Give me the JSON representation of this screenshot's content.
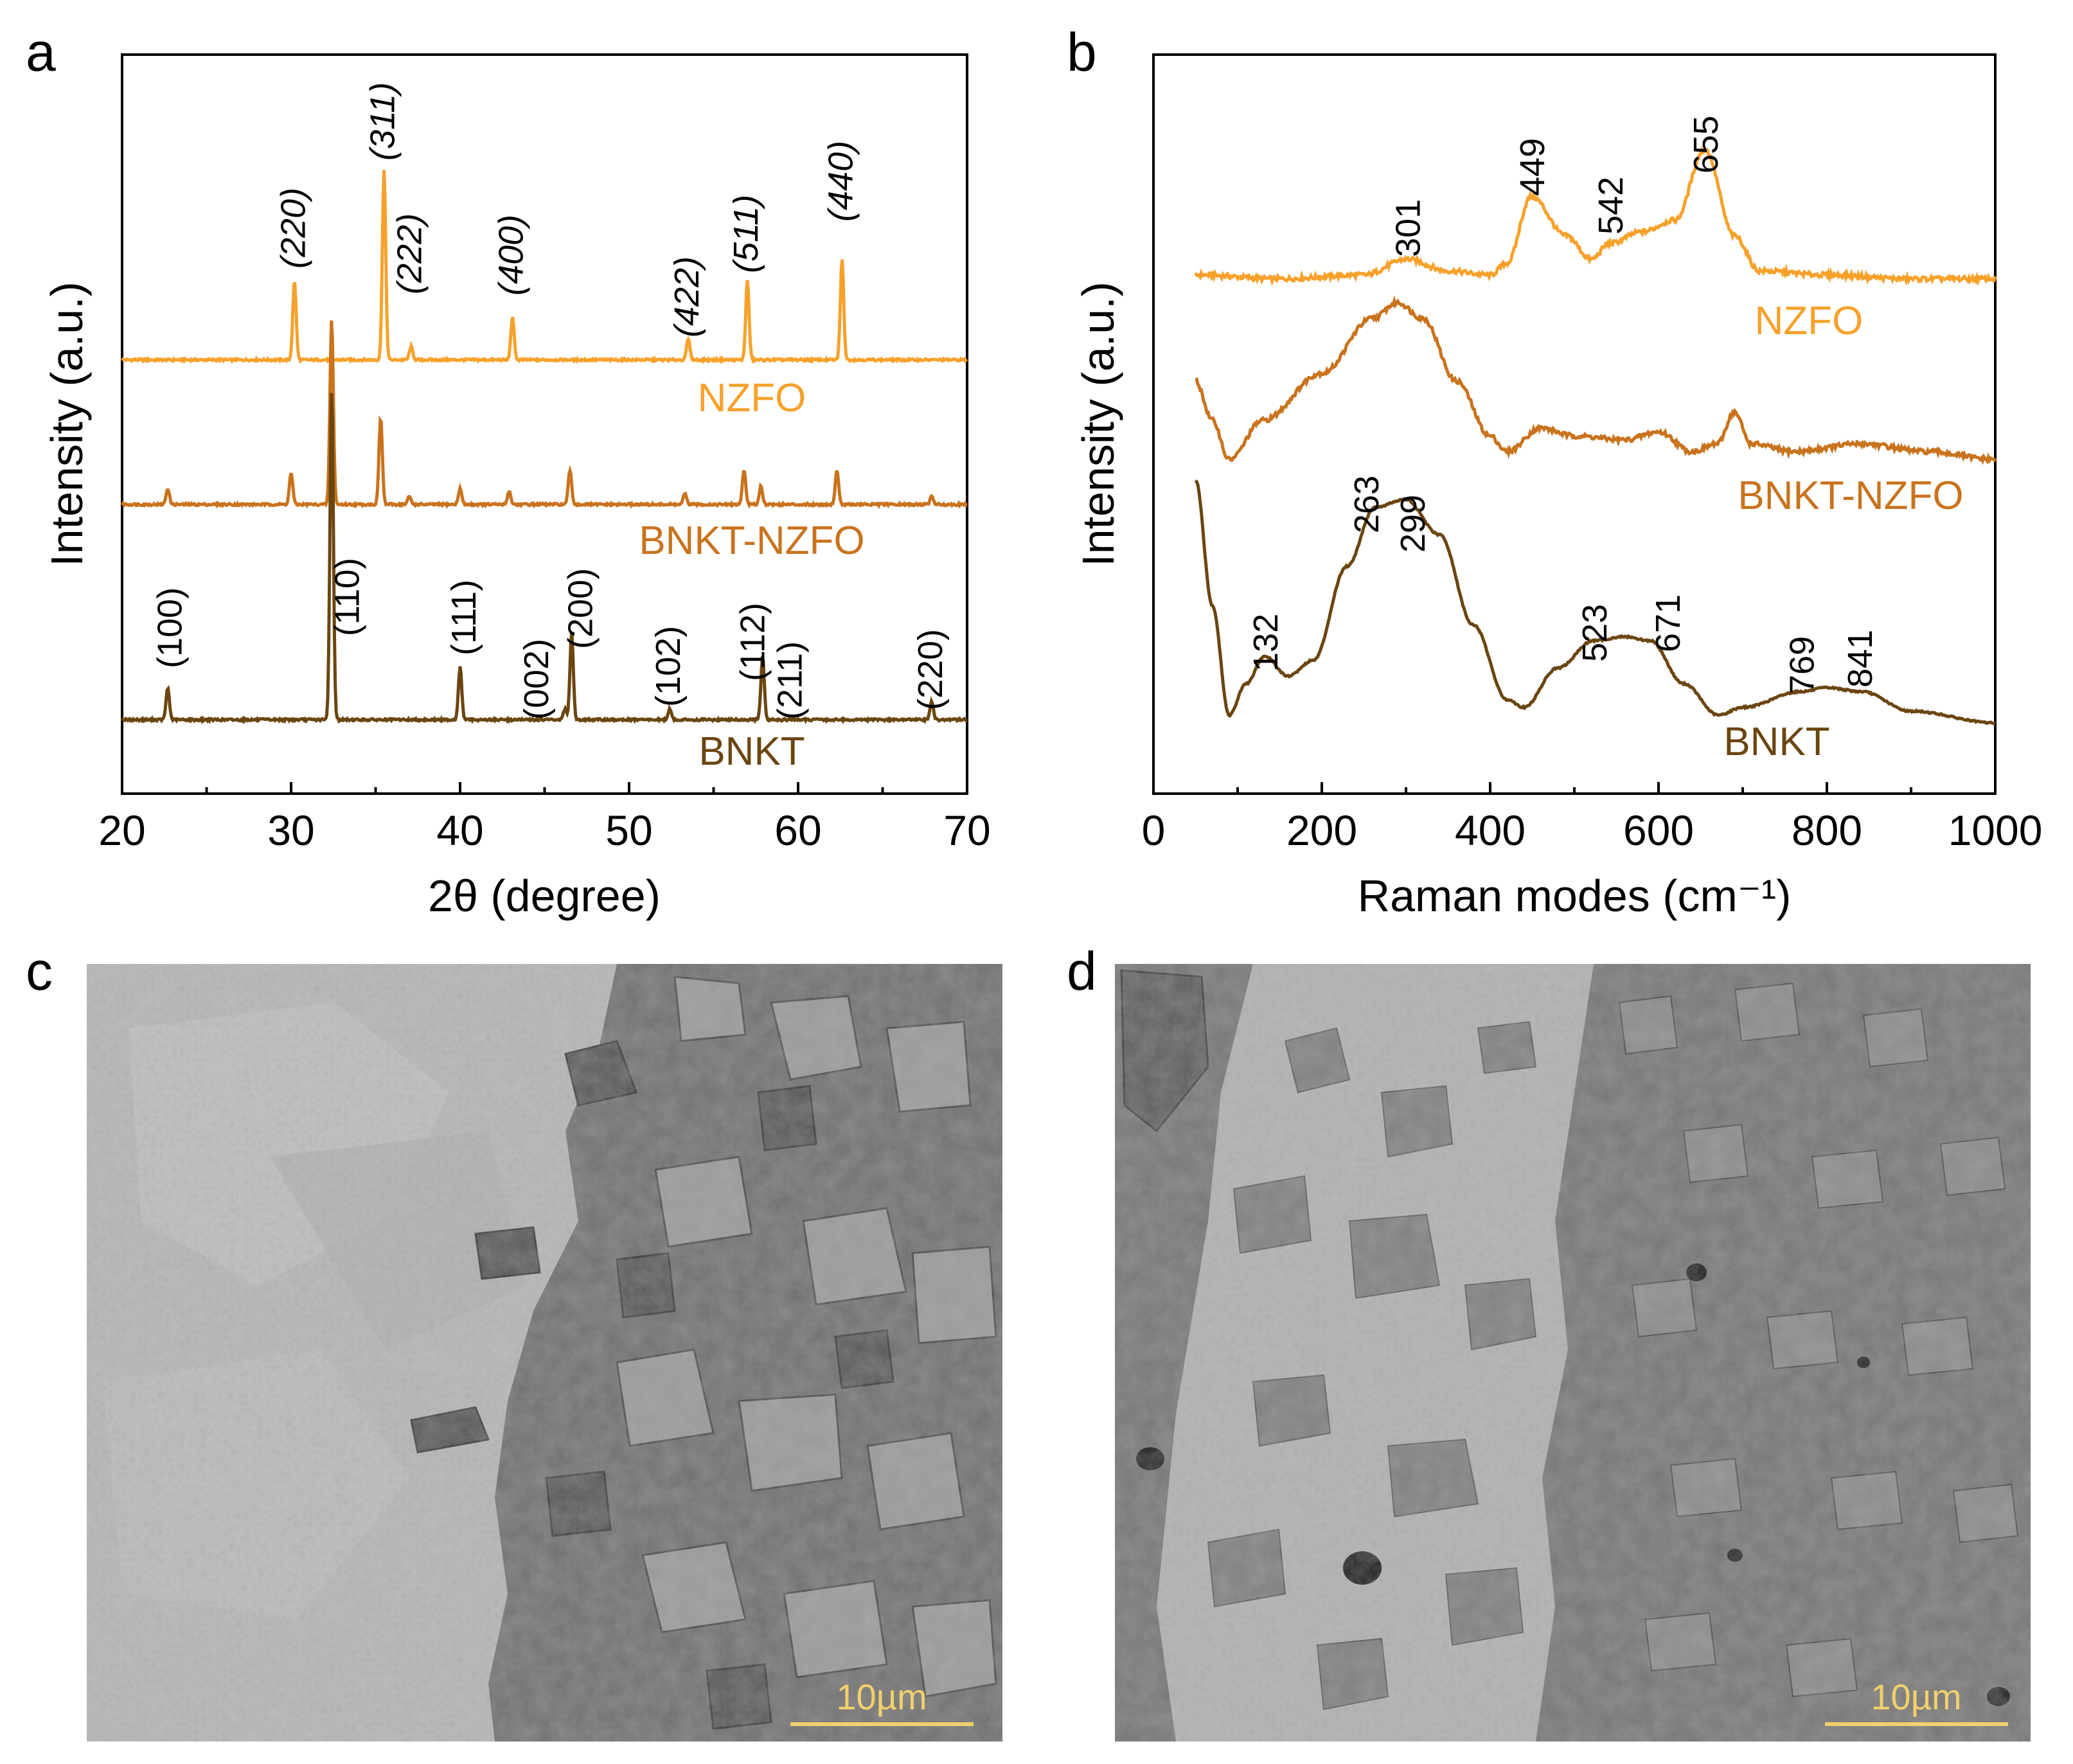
{
  "panels": {
    "a": "a",
    "b": "b",
    "c": "c",
    "d": "d"
  },
  "colors": {
    "NZFO": "#F7A12B",
    "BNKT-NZFO": "#C9731D",
    "BNKT": "#6B4510",
    "axis": "#000000",
    "scalebar": "#F2D06B"
  },
  "chart_data": [
    {
      "panel": "a",
      "type": "line",
      "title": "",
      "xlabel": "2θ (degree)",
      "ylabel": "Intensity (a.u.)",
      "xlim": [
        20,
        70
      ],
      "xticks": [
        20,
        30,
        40,
        50,
        60,
        70
      ],
      "grid": false,
      "series": [
        {
          "name": "NZFO",
          "peaks": [
            {
              "x": 30.2,
              "h": 0.3,
              "label": "(220)",
              "italic": true
            },
            {
              "x": 35.5,
              "h": 0.72,
              "label": "(311)",
              "italic": true
            },
            {
              "x": 37.1,
              "h": 0.05,
              "label": "(222)",
              "italic": true
            },
            {
              "x": 43.1,
              "h": 0.16,
              "label": "(400)",
              "italic": true
            },
            {
              "x": 53.5,
              "h": 0.08,
              "label": "(422)",
              "italic": true
            },
            {
              "x": 57.0,
              "h": 0.3,
              "label": "(511)",
              "italic": true
            },
            {
              "x": 62.6,
              "h": 0.38,
              "label": "(440)",
              "italic": true
            }
          ]
        },
        {
          "name": "BNKT-NZFO",
          "peaks": [
            {
              "x": 22.7,
              "h": 0.06
            },
            {
              "x": 30.0,
              "h": 0.12
            },
            {
              "x": 32.4,
              "h": 0.7
            },
            {
              "x": 35.3,
              "h": 0.33
            },
            {
              "x": 37.0,
              "h": 0.03
            },
            {
              "x": 40.0,
              "h": 0.06
            },
            {
              "x": 42.9,
              "h": 0.05
            },
            {
              "x": 46.5,
              "h": 0.13
            },
            {
              "x": 53.3,
              "h": 0.04
            },
            {
              "x": 56.8,
              "h": 0.13
            },
            {
              "x": 57.8,
              "h": 0.07
            },
            {
              "x": 62.3,
              "h": 0.13
            },
            {
              "x": 67.9,
              "h": 0.03
            }
          ]
        },
        {
          "name": "BNKT",
          "peaks": [
            {
              "x": 22.7,
              "h": 0.12,
              "label": "(100)"
            },
            {
              "x": 32.4,
              "h": 1.25,
              "label": "(110)"
            },
            {
              "x": 40.0,
              "h": 0.2,
              "label": "(111)"
            },
            {
              "x": 46.2,
              "h": 0.04,
              "label": "(002)"
            },
            {
              "x": 46.6,
              "h": 0.33,
              "label": "(200)"
            },
            {
              "x": 52.4,
              "h": 0.04,
              "label": "(102)"
            },
            {
              "x": 57.9,
              "h": 0.24,
              "label": "(112)"
            },
            {
              "x": 58.0,
              "h": 0.0,
              "label": "(211)"
            },
            {
              "x": 67.9,
              "h": 0.07,
              "label": "(220)"
            }
          ]
        }
      ]
    },
    {
      "panel": "b",
      "type": "line",
      "title": "",
      "xlabel": "Raman modes (cm⁻¹)",
      "ylabel": "Intensity (a.u.)",
      "xlim": [
        0,
        1000
      ],
      "xticks": [
        0,
        200,
        400,
        600,
        800,
        1000
      ],
      "grid": false,
      "series": [
        {
          "name": "NZFO",
          "points": [
            [
              50,
              0.02
            ],
            [
              150,
              0.01
            ],
            [
              250,
              0.02
            ],
            [
              301,
              0.06
            ],
            [
              350,
              0.03
            ],
            [
              400,
              0.02
            ],
            [
              420,
              0.05
            ],
            [
              449,
              0.22
            ],
            [
              490,
              0.12
            ],
            [
              520,
              0.06
            ],
            [
              542,
              0.1
            ],
            [
              580,
              0.13
            ],
            [
              620,
              0.16
            ],
            [
              655,
              0.34
            ],
            [
              690,
              0.12
            ],
            [
              720,
              0.03
            ],
            [
              800,
              0.02
            ],
            [
              900,
              0.01
            ],
            [
              1000,
              0.01
            ]
          ],
          "mode_labels": [
            "301",
            "449",
            "542",
            "655"
          ]
        },
        {
          "name": "BNKT-NZFO",
          "points": [
            [
              50,
              0.2
            ],
            [
              70,
              0.1
            ],
            [
              90,
              0.0
            ],
            [
              130,
              0.1
            ],
            [
              200,
              0.22
            ],
            [
              260,
              0.36
            ],
            [
              290,
              0.4
            ],
            [
              320,
              0.36
            ],
            [
              360,
              0.2
            ],
            [
              400,
              0.06
            ],
            [
              420,
              0.02
            ],
            [
              460,
              0.08
            ],
            [
              500,
              0.06
            ],
            [
              560,
              0.05
            ],
            [
              600,
              0.07
            ],
            [
              640,
              0.02
            ],
            [
              670,
              0.04
            ],
            [
              690,
              0.12
            ],
            [
              710,
              0.04
            ],
            [
              760,
              0.02
            ],
            [
              840,
              0.04
            ],
            [
              920,
              0.02
            ],
            [
              1000,
              0.0
            ]
          ]
        },
        {
          "name": "BNKT",
          "points": [
            [
              50,
              0.62
            ],
            [
              70,
              0.3
            ],
            [
              90,
              0.02
            ],
            [
              110,
              0.1
            ],
            [
              132,
              0.17
            ],
            [
              160,
              0.12
            ],
            [
              190,
              0.16
            ],
            [
              230,
              0.4
            ],
            [
              263,
              0.55
            ],
            [
              299,
              0.57
            ],
            [
              340,
              0.48
            ],
            [
              380,
              0.25
            ],
            [
              420,
              0.06
            ],
            [
              440,
              0.04
            ],
            [
              480,
              0.14
            ],
            [
              523,
              0.21
            ],
            [
              560,
              0.22
            ],
            [
              590,
              0.21
            ],
            [
              630,
              0.1
            ],
            [
              671,
              0.02
            ],
            [
              700,
              0.04
            ],
            [
              769,
              0.08
            ],
            [
              800,
              0.09
            ],
            [
              841,
              0.08
            ],
            [
              900,
              0.03
            ],
            [
              1000,
              0.0
            ]
          ],
          "mode_labels": [
            "132",
            "263",
            "299",
            "523",
            "671",
            "769",
            "841"
          ]
        }
      ]
    }
  ],
  "micrographs": {
    "c": {
      "scalebar": "10µm"
    },
    "d": {
      "scalebar": "10µm"
    }
  }
}
